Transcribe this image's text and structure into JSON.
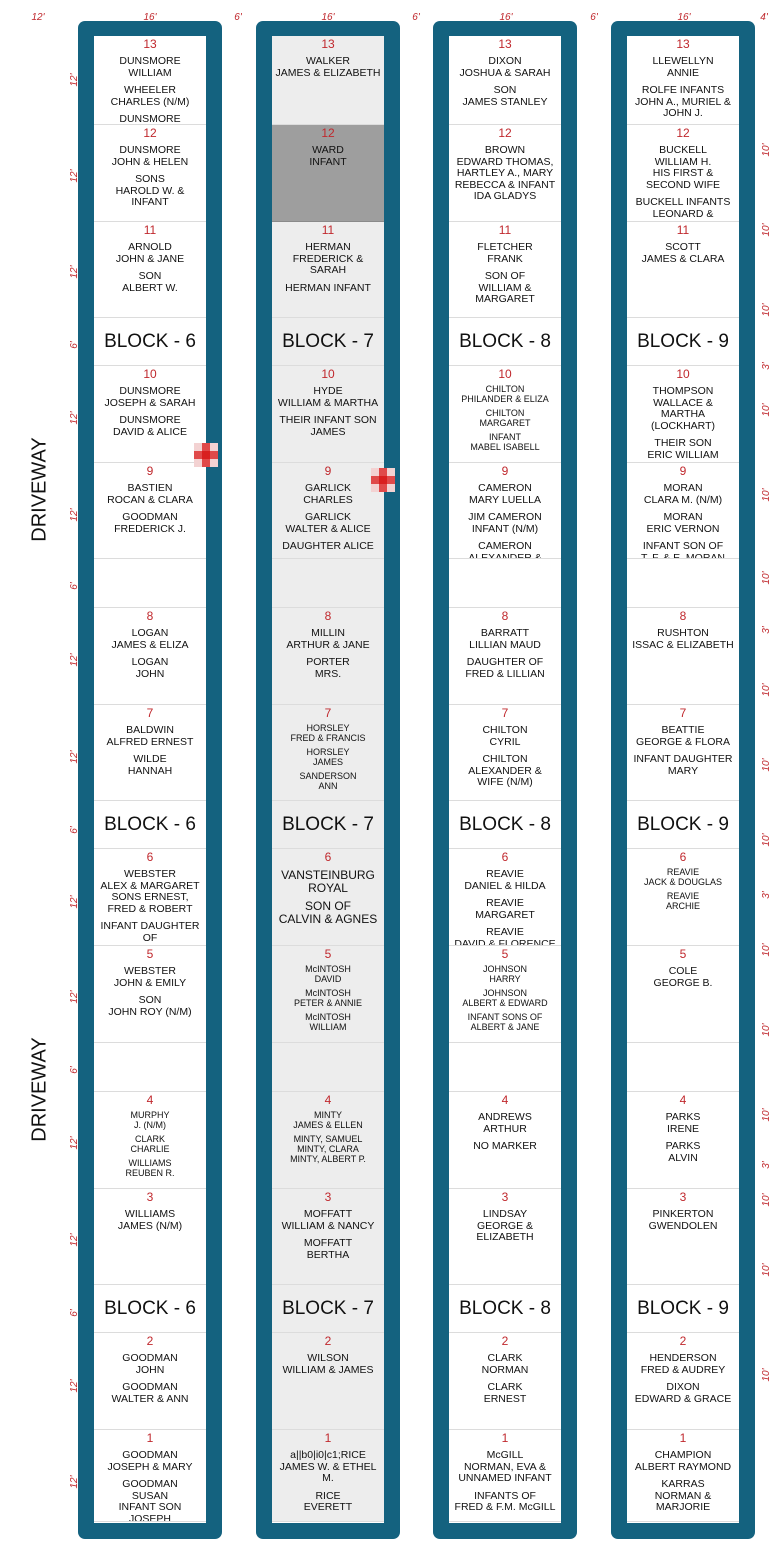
{
  "dimensions": {
    "top": [
      "12'",
      "16'",
      "6'",
      "16'",
      "6'",
      "16'",
      "6'",
      "16'",
      "4'"
    ],
    "left": [
      "12'",
      "12'",
      "12'",
      "6'",
      "12'",
      "12'",
      "6'",
      "12'",
      "12'",
      "6'",
      "12'",
      "12'",
      "6'",
      "12'",
      "12'",
      "6'",
      "12'",
      "12'"
    ],
    "right": [
      "10'",
      "10'",
      "10'",
      "3'",
      "10'",
      "10'",
      "10'",
      "3'",
      "10'",
      "10'",
      "10'",
      "3'",
      "10'",
      "10'",
      "10'",
      "3'",
      "10'",
      "10'",
      "10'"
    ]
  },
  "driveway_label": "DRIVEWAY",
  "colors": {
    "frame": "#14627f",
    "plot_number": "#c0282d",
    "shaded_plot": "#ededed",
    "dark_plot": "#9e9e9e"
  },
  "columns": [
    {
      "block_label": "BLOCK - 6",
      "plots": [
        {
          "num": "13",
          "names": [
            "DUNSMORE\nWILLIAM",
            "WHEELER\nCHARLES (N/M)",
            "DUNSMORE\nROBERT G."
          ]
        },
        {
          "num": "12",
          "names": [
            "DUNSMORE\nJOHN & HELEN",
            "SONS\nHAROLD W. & INFANT"
          ]
        },
        {
          "num": "11",
          "names": [
            "ARNOLD\nJOHN & JANE",
            "SON\nALBERT W."
          ]
        },
        {
          "num": "10",
          "names": [
            "DUNSMORE\nJOSEPH & SARAH",
            "DUNSMORE\nDAVID & ALICE"
          ]
        },
        {
          "num": "9",
          "names": [
            "BASTIEN\nROCAN & CLARA",
            "GOODMAN\nFREDERICK J."
          ]
        },
        {
          "num": "",
          "names": []
        },
        {
          "num": "8",
          "names": [
            "LOGAN\nJAMES & ELIZA",
            "LOGAN\nJOHN"
          ]
        },
        {
          "num": "7",
          "names": [
            "BALDWIN\nALFRED ERNEST",
            "WILDE\nHANNAH"
          ]
        },
        {
          "num": "6",
          "names": [
            "WEBSTER\nALEX & MARGARET\nSONS ERNEST,\nFRED & ROBERT",
            "INFANT DAUGHTER OF\nWILLIAM & AGNES"
          ]
        },
        {
          "num": "5",
          "names": [
            "WEBSTER\nJOHN & EMILY",
            "SON\nJOHN ROY (N/M)"
          ]
        },
        {
          "num": "",
          "names": []
        },
        {
          "num": "4",
          "small": true,
          "names": [
            "MURPHY\nJ. (N/M)",
            "CLARK\nCHARLIE",
            "WILLIAMS\nREUBEN R."
          ]
        },
        {
          "num": "3",
          "names": [
            "WILLIAMS\nJAMES (N/M)"
          ]
        },
        {
          "num": "2",
          "names": [
            "GOODMAN\nJOHN",
            "GOODMAN\nWALTER & ANN"
          ]
        },
        {
          "num": "1",
          "names": [
            "GOODMAN\nJOSEPH & MARY",
            "GOODMAN\nSUSAN\nINFANT SON\nJOSEPH"
          ]
        }
      ]
    },
    {
      "block_label": "BLOCK - 7",
      "plots": [
        {
          "num": "13",
          "names": [
            "WALKER\nJAMES & ELIZABETH"
          ]
        },
        {
          "num": "12",
          "names": [
            "WARD\nINFANT"
          ]
        },
        {
          "num": "11",
          "names": [
            "HERMAN\nFREDERICK & SARAH",
            "HERMAN INFANT"
          ]
        },
        {
          "num": "10",
          "names": [
            "HYDE\nWILLIAM & MARTHA",
            "THEIR INFANT SON\nJAMES"
          ]
        },
        {
          "num": "9",
          "names": [
            "GARLICK\nCHARLES",
            "GARLICK\nWALTER & ALICE",
            "DAUGHTER ALICE"
          ]
        },
        {
          "num": "",
          "names": []
        },
        {
          "num": "8",
          "names": [
            "MILLIN\nARTHUR & JANE",
            "PORTER\nMRS."
          ]
        },
        {
          "num": "7",
          "small": true,
          "names": [
            "HORSLEY\nFRED & FRANCIS",
            "HORSLEY\nJAMES",
            "SANDERSON\nANN"
          ]
        },
        {
          "num": "6",
          "large": true,
          "names": [
            "VANSTEINBURG\nROYAL",
            "SON OF\nCALVIN & AGNES"
          ]
        },
        {
          "num": "5",
          "small": true,
          "names": [
            "McINTOSH\nDAVID",
            "McINTOSH\nPETER & ANNIE",
            "McINTOSH\nWILLIAM"
          ]
        },
        {
          "num": "",
          "names": []
        },
        {
          "num": "4",
          "small": true,
          "names": [
            "MINTY\nJAMES & ELLEN",
            "MINTY, SAMUEL\nMINTY, CLARA\nMINTY, ALBERT P."
          ]
        },
        {
          "num": "3",
          "names": [
            "MOFFATT\nWILLIAM & NANCY",
            "MOFFATT\nBERTHA"
          ]
        },
        {
          "num": "2",
          "names": [
            "WILSON\nWILLIAM & JAMES"
          ]
        },
        {
          "num": "1",
          "names": [
            "a||b0|i0|c1;RICE\nJAMES W. & ETHEL M.",
            "RICE\nEVERETT"
          ]
        }
      ]
    },
    {
      "block_label": "BLOCK - 8",
      "plots": [
        {
          "num": "13",
          "names": [
            "DIXON\nJOSHUA & SARAH",
            "SON\nJAMES STANLEY"
          ]
        },
        {
          "num": "12",
          "names": [
            "BROWN\nEDWARD THOMAS,\nHARTLEY A., MARY\nREBECCA & INFANT\nIDA GLADYS"
          ]
        },
        {
          "num": "11",
          "names": [
            "FLETCHER\nFRANK",
            "SON OF\nWILLIAM & MARGARET"
          ]
        },
        {
          "num": "10",
          "small": true,
          "names": [
            "CHILTON\nPHILANDER & ELIZA",
            "CHILTON\nMARGARET",
            "INFANT\nMABEL ISABELL"
          ]
        },
        {
          "num": "9",
          "names": [
            "CAMERON\nMARY LUELLA",
            "JIM CAMERON\nINFANT (N/M)",
            "CAMERON\nALEXANDER & CATHERINE"
          ]
        },
        {
          "num": "",
          "names": []
        },
        {
          "num": "8",
          "names": [
            "BARRATT\nLILLIAN MAUD",
            "DAUGHTER OF\nFRED & LILLIAN"
          ]
        },
        {
          "num": "7",
          "names": [
            "CHILTON\nCYRIL",
            "CHILTON\nALEXANDER &\nWIFE (N/M)"
          ]
        },
        {
          "num": "6",
          "names": [
            "REAVIE\nDANIEL & HILDA",
            "REAVIE\nMARGARET",
            "REAVIE\nDAVID & FLORENCE"
          ]
        },
        {
          "num": "5",
          "small": true,
          "names": [
            "JOHNSON\nHARRY",
            "JOHNSON\nALBERT & EDWARD",
            "INFANT SONS OF\nALBERT & JANE"
          ]
        },
        {
          "num": "",
          "names": []
        },
        {
          "num": "4",
          "names": [
            "ANDREWS\nARTHUR",
            "NO MARKER"
          ]
        },
        {
          "num": "3",
          "names": [
            "LINDSAY\nGEORGE & ELIZABETH"
          ]
        },
        {
          "num": "2",
          "names": [
            "CLARK\nNORMAN",
            "CLARK\nERNEST"
          ]
        },
        {
          "num": "1",
          "names": [
            "McGILL\nNORMAN, EVA &\nUNNAMED INFANT",
            "INFANTS OF\nFRED & F.M. McGILL"
          ]
        }
      ]
    },
    {
      "block_label": "BLOCK - 9",
      "plots": [
        {
          "num": "13",
          "names": [
            "LLEWELLYN\nANNIE",
            "ROLFE INFANTS\nJOHN A., MURIEL &\nJOHN J."
          ]
        },
        {
          "num": "12",
          "names": [
            "BUCKELL\nWILLIAM H.\nHIS FIRST & SECOND WIFE",
            "BUCKELL INFANTS\nLEONARD & DOROTHY\nNO MARKERS"
          ]
        },
        {
          "num": "11",
          "names": [
            "SCOTT\nJAMES & CLARA"
          ]
        },
        {
          "num": "10",
          "names": [
            "THOMPSON\nWALLACE &\nMARTHA (LOCKHART)",
            "THEIR SON\nERIC WILLIAM"
          ]
        },
        {
          "num": "9",
          "names": [
            "MORAN\nCLARA M. (N/M)",
            "MORAN\nERIC VERNON",
            "INFANT SON OF\nT. F. & E. MORAN"
          ]
        },
        {
          "num": "",
          "names": []
        },
        {
          "num": "8",
          "names": [
            "RUSHTON\nISSAC & ELIZABETH"
          ]
        },
        {
          "num": "7",
          "names": [
            "BEATTIE\nGEORGE & FLORA",
            "INFANT DAUGHTER\nMARY"
          ]
        },
        {
          "num": "6",
          "small": true,
          "names": [
            "REAVIE\nJACK & DOUGLAS",
            "REAVIE\nARCHIE"
          ]
        },
        {
          "num": "5",
          "names": [
            "COLE\nGEORGE B."
          ]
        },
        {
          "num": "",
          "names": []
        },
        {
          "num": "4",
          "names": [
            "PARKS\nIRENE",
            "PARKS\nALVIN"
          ]
        },
        {
          "num": "3",
          "names": [
            "PINKERTON\nGWENDOLEN"
          ]
        },
        {
          "num": "2",
          "names": [
            "HENDERSON\nFRED & AUDREY",
            "DIXON\nEDWARD & GRACE"
          ]
        },
        {
          "num": "1",
          "names": [
            "CHAMPION\nALBERT RAYMOND",
            "KARRAS\nNORMAN & MARJORIE"
          ]
        }
      ]
    }
  ]
}
